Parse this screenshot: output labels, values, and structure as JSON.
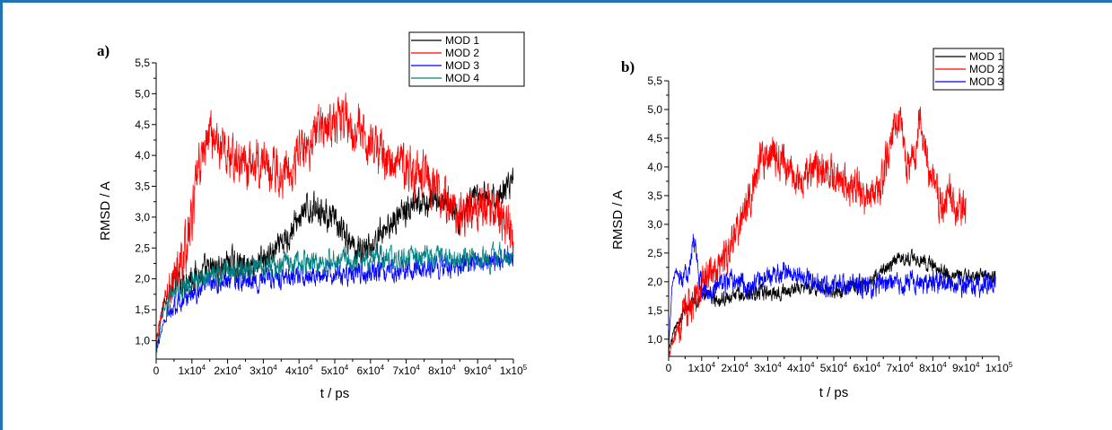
{
  "colors": {
    "frame": "#1f73b7"
  },
  "chart_data": [
    {
      "type": "line",
      "panel_label": "a)",
      "xlabel": "t / ps",
      "ylabel": "RMSD / A",
      "xlim": [
        0,
        100000
      ],
      "ylim": [
        0.7,
        5.5
      ],
      "x_ticks": [
        0,
        10000,
        20000,
        30000,
        40000,
        50000,
        60000,
        70000,
        80000,
        90000,
        100000
      ],
      "x_tick_labels": [
        "0",
        "1x10",
        "2x10",
        "3x10",
        "4x10",
        "5x10",
        "6x10",
        "7x10",
        "8x10",
        "9x10",
        "1x10"
      ],
      "x_tick_exponents": [
        "",
        "4",
        "4",
        "4",
        "4",
        "4",
        "4",
        "4",
        "4",
        "4",
        "5"
      ],
      "y_ticks": [
        1.0,
        1.5,
        2.0,
        2.5,
        3.0,
        3.5,
        4.0,
        4.5,
        5.0,
        5.5
      ],
      "y_tick_labels": [
        "1,0",
        "1,5",
        "2,0",
        "2,5",
        "3,0",
        "3,5",
        "4,0",
        "4,5",
        "5,0",
        "5,5"
      ],
      "legend_position": "top-right",
      "grid": false,
      "series": [
        {
          "name": "MOD 1",
          "color": "#000000",
          "noise": 0.28,
          "x": [
            0,
            2000,
            5000,
            8000,
            10000,
            15000,
            20000,
            25000,
            30000,
            35000,
            40000,
            45000,
            50000,
            55000,
            60000,
            65000,
            70000,
            75000,
            80000,
            85000,
            90000,
            95000,
            100000
          ],
          "values": [
            0.8,
            1.6,
            1.9,
            2.0,
            2.05,
            2.1,
            2.25,
            2.2,
            2.3,
            2.5,
            3.0,
            3.2,
            2.9,
            2.5,
            2.5,
            2.9,
            3.1,
            3.2,
            3.3,
            3.0,
            3.3,
            3.3,
            3.6
          ]
        },
        {
          "name": "MOD 2",
          "color": "#ff0000",
          "noise": 0.45,
          "x": [
            0,
            2000,
            5000,
            8000,
            10000,
            12000,
            15000,
            20000,
            25000,
            30000,
            35000,
            40000,
            45000,
            50000,
            55000,
            60000,
            65000,
            70000,
            75000,
            80000,
            85000,
            90000,
            95000,
            100000
          ],
          "values": [
            0.9,
            1.6,
            2.0,
            2.4,
            3.0,
            3.8,
            4.4,
            4.0,
            3.8,
            3.9,
            3.7,
            4.0,
            4.4,
            4.6,
            4.5,
            4.2,
            3.9,
            3.8,
            3.6,
            3.4,
            3.0,
            3.2,
            3.1,
            2.8
          ]
        },
        {
          "name": "MOD 3",
          "color": "#0000ff",
          "noise": 0.2,
          "x": [
            0,
            2000,
            5000,
            10000,
            15000,
            20000,
            25000,
            30000,
            40000,
            50000,
            60000,
            70000,
            80000,
            90000,
            100000
          ],
          "values": [
            0.8,
            1.3,
            1.6,
            1.75,
            1.9,
            2.0,
            1.95,
            2.0,
            2.05,
            2.05,
            2.1,
            2.15,
            2.2,
            2.25,
            2.3
          ]
        },
        {
          "name": "MOD 4",
          "color": "#008080",
          "noise": 0.22,
          "x": [
            0,
            2000,
            5000,
            10000,
            15000,
            20000,
            25000,
            30000,
            40000,
            50000,
            60000,
            70000,
            80000,
            90000,
            100000
          ],
          "values": [
            0.8,
            1.5,
            1.8,
            1.95,
            2.05,
            2.1,
            2.15,
            2.2,
            2.25,
            2.3,
            2.35,
            2.3,
            2.35,
            2.3,
            2.4
          ]
        }
      ]
    },
    {
      "type": "line",
      "panel_label": "b)",
      "xlabel": "t / ps",
      "ylabel": "RMSD / A",
      "xlim": [
        0,
        100000
      ],
      "ylim": [
        0.7,
        5.5
      ],
      "x_ticks": [
        0,
        10000,
        20000,
        30000,
        40000,
        50000,
        60000,
        70000,
        80000,
        90000,
        100000
      ],
      "x_tick_labels": [
        "0",
        "1x10",
        "2x10",
        "3x10",
        "4x10",
        "5x10",
        "6x10",
        "7x10",
        "8x10",
        "9x10",
        "1x10"
      ],
      "x_tick_exponents": [
        "",
        "4",
        "4",
        "4",
        "4",
        "4",
        "4",
        "4",
        "4",
        "4",
        "5"
      ],
      "y_ticks": [
        1.0,
        1.5,
        2.0,
        2.5,
        3.0,
        3.5,
        4.0,
        4.5,
        5.0,
        5.5
      ],
      "y_tick_labels": [
        "1,0",
        "1,5",
        "2,0",
        "2,5",
        "3,0",
        "3,5",
        "4,0",
        "4,5",
        "5,0",
        "5,5"
      ],
      "legend_position": "top-right",
      "grid": false,
      "series": [
        {
          "name": "MOD 1",
          "color": "#000000",
          "noise": 0.15,
          "x": [
            0,
            2000,
            5000,
            8000,
            10000,
            15000,
            20000,
            25000,
            30000,
            40000,
            50000,
            60000,
            65000,
            70000,
            75000,
            80000,
            85000,
            90000,
            95000,
            99000
          ],
          "values": [
            0.8,
            1.2,
            1.5,
            1.7,
            1.75,
            1.7,
            1.75,
            1.8,
            1.8,
            1.9,
            1.85,
            1.95,
            2.2,
            2.4,
            2.4,
            2.3,
            2.1,
            2.1,
            2.1,
            2.05
          ]
        },
        {
          "name": "MOD 2",
          "color": "#ff0000",
          "noise": 0.38,
          "x": [
            0,
            2000,
            5000,
            8000,
            12000,
            16000,
            20000,
            24000,
            28000,
            32000,
            36000,
            40000,
            45000,
            50000,
            55000,
            60000,
            65000,
            68000,
            70000,
            72000,
            75000,
            76000,
            78000,
            80000,
            82000,
            85000,
            88000,
            90000
          ],
          "values": [
            0.8,
            1.1,
            1.4,
            1.7,
            2.1,
            2.4,
            2.7,
            3.4,
            4.1,
            4.3,
            3.9,
            3.8,
            4.0,
            3.8,
            3.7,
            3.5,
            3.8,
            4.6,
            4.9,
            4.0,
            4.3,
            5.0,
            4.1,
            3.8,
            3.3,
            3.6,
            3.2,
            3.4
          ]
        },
        {
          "name": "MOD 3",
          "color": "#0000ff",
          "noise": 0.22,
          "x": [
            0,
            1000,
            2000,
            4000,
            6000,
            7500,
            9000,
            11000,
            14000,
            18000,
            20000,
            25000,
            30000,
            35000,
            40000,
            45000,
            50000,
            60000,
            70000,
            80000,
            90000,
            99000
          ],
          "values": [
            0.8,
            1.9,
            2.2,
            2.1,
            2.2,
            2.8,
            2.1,
            1.8,
            1.9,
            2.0,
            2.0,
            1.9,
            2.05,
            2.2,
            2.1,
            2.0,
            1.95,
            1.9,
            1.95,
            2.0,
            1.9,
            2.0
          ]
        }
      ]
    }
  ]
}
